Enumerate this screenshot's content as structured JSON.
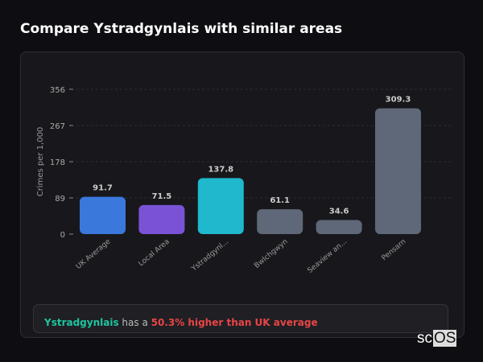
{
  "title": "Compare Ystradgynlais with similar areas",
  "chart_data": {
    "type": "bar",
    "ylabel": "Crimes per 1,000",
    "ylim": [
      0,
      356
    ],
    "yticks": [
      0,
      89,
      178,
      267,
      356
    ],
    "categories": [
      "UK Average",
      "Local Area",
      "Ystradgynl...",
      "Bwlchgwyn",
      "Seaview an...",
      "Pensarn"
    ],
    "values": [
      91.7,
      71.5,
      137.8,
      61.1,
      34.6,
      309.3
    ],
    "value_labels": [
      "91.7",
      "71.5",
      "137.8",
      "61.1",
      "34.6",
      "309.3"
    ],
    "colors": [
      "#3a78dc",
      "#7a52d6",
      "#1fb8cc",
      "#5f6878",
      "#5f6878",
      "#5f6878"
    ],
    "grid": true
  },
  "summary": {
    "area": "Ystradgynlais",
    "middle": " has a ",
    "comparison": "50.3% higher than UK average"
  },
  "logo": {
    "prefix": "sc",
    "box": "OS"
  }
}
